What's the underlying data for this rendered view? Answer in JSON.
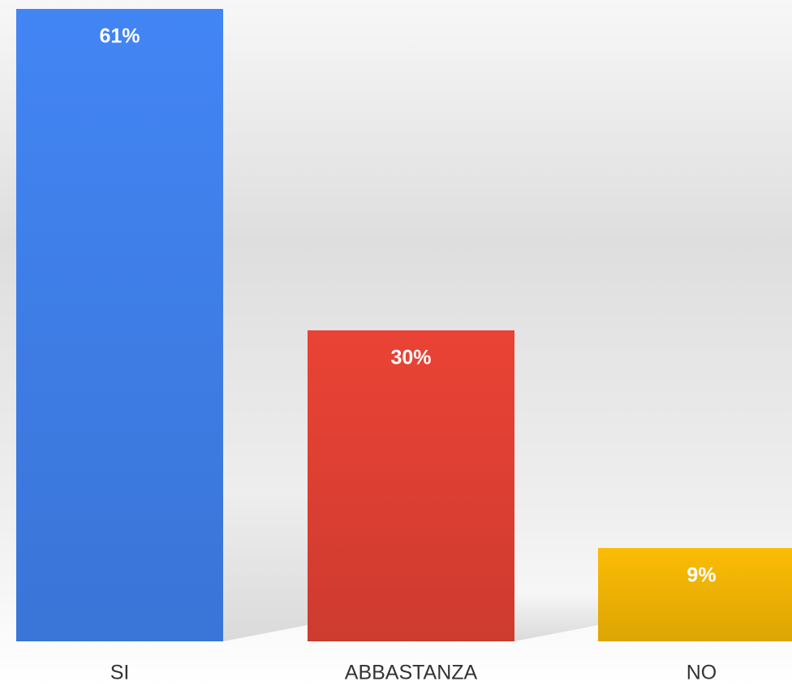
{
  "chart_data": {
    "type": "bar",
    "categories": [
      "SI",
      "ABBASTANZA",
      "NO"
    ],
    "values": [
      61,
      30,
      9
    ],
    "value_labels": [
      "61%",
      "30%",
      "9%"
    ],
    "colors": [
      "#4285f4",
      "#ea4335",
      "#fbbc05"
    ],
    "ylim": [
      0,
      61
    ]
  }
}
